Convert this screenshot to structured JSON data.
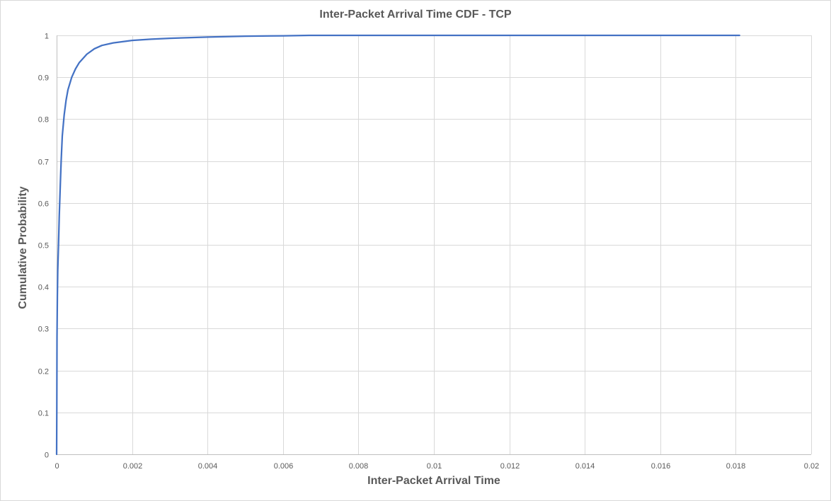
{
  "chart_data": {
    "type": "line",
    "title": "Inter-Packet Arrival Time CDF - TCP",
    "xlabel": "Inter-Packet Arrival Time",
    "ylabel": "Cumulative Probability",
    "xlim": [
      0,
      0.02
    ],
    "ylim": [
      0,
      1
    ],
    "x_ticks": [
      "0",
      "0.002",
      "0.004",
      "0.006",
      "0.008",
      "0.01",
      "0.012",
      "0.014",
      "0.016",
      "0.018",
      "0.02"
    ],
    "y_ticks": [
      "0",
      "0.1",
      "0.2",
      "0.3",
      "0.4",
      "0.5",
      "0.6",
      "0.7",
      "0.8",
      "0.9",
      "1"
    ],
    "grid": true,
    "legend": "none",
    "series": [
      {
        "color": "#4472c4",
        "x": [
          0,
          5e-06,
          1e-05,
          2e-05,
          3e-05,
          5e-05,
          7e-05,
          0.0001,
          0.00012,
          0.00015,
          0.0002,
          0.00025,
          0.0003,
          0.0004,
          0.0005,
          0.0006,
          0.0008,
          0.001,
          0.0012,
          0.0015,
          0.002,
          0.0025,
          0.003,
          0.004,
          0.005,
          0.006,
          0.0067,
          0.008,
          0.01,
          0.012,
          0.014,
          0.016,
          0.0181
        ],
        "y": [
          0,
          0.11,
          0.28,
          0.38,
          0.44,
          0.5,
          0.57,
          0.65,
          0.7,
          0.76,
          0.81,
          0.845,
          0.87,
          0.9,
          0.92,
          0.935,
          0.955,
          0.968,
          0.976,
          0.982,
          0.988,
          0.991,
          0.993,
          0.996,
          0.998,
          0.999,
          1,
          1,
          1,
          1,
          1,
          1,
          1
        ]
      }
    ]
  }
}
